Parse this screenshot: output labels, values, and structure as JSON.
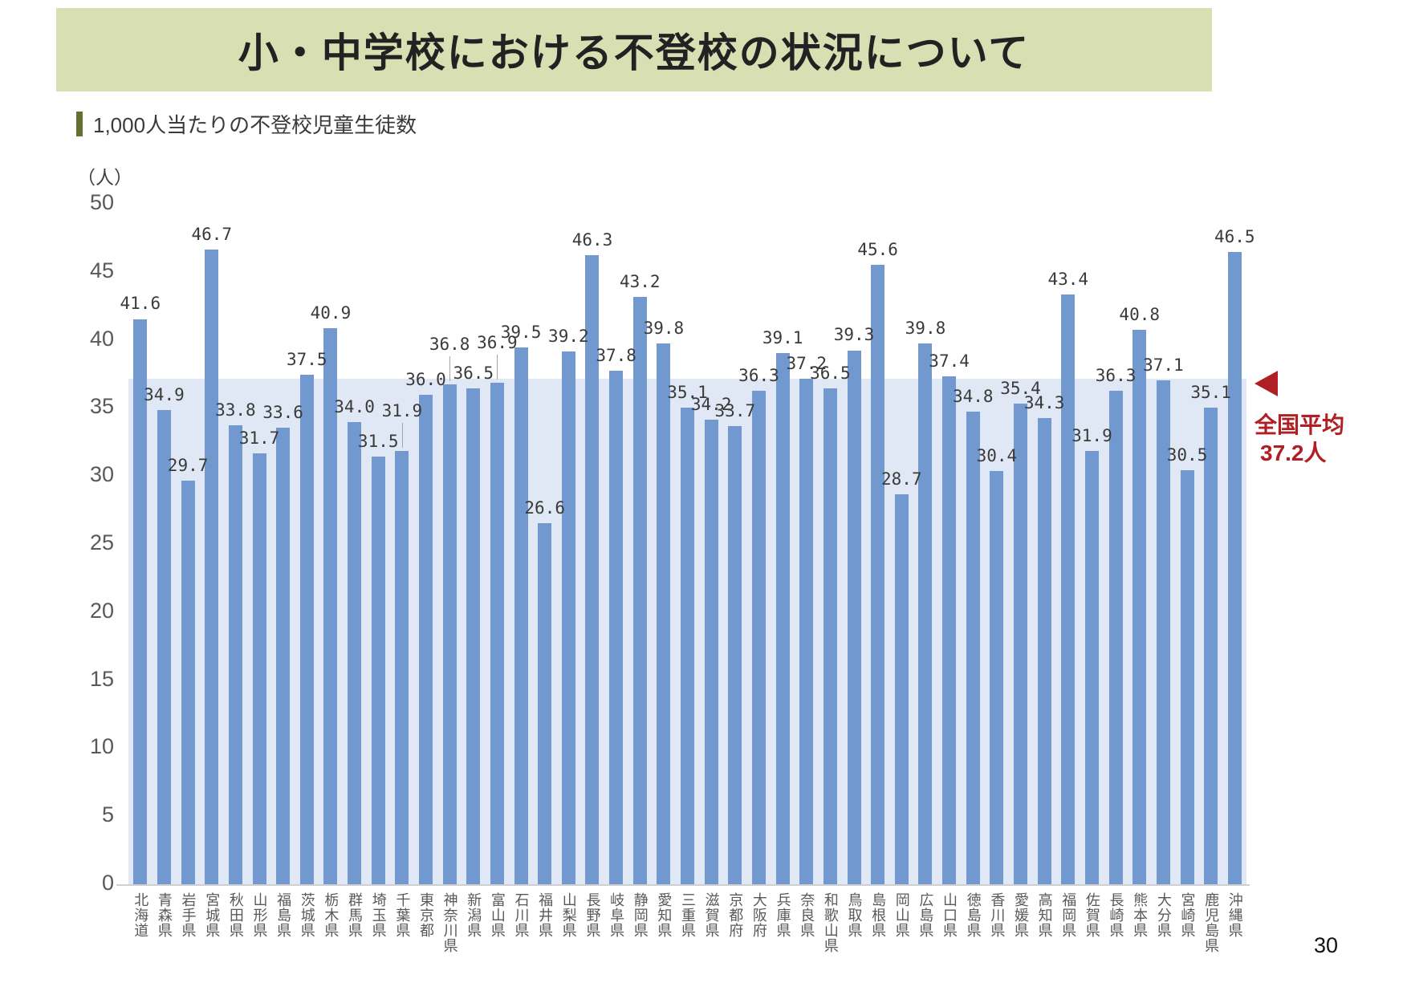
{
  "page": {
    "number": "30"
  },
  "header": {
    "title": "小・中学校における不登校の状況について"
  },
  "subtitle": {
    "text": "1,000人当たりの不登校児童生徒数"
  },
  "colors": {
    "header_bg": "#d7dfb3",
    "subtitle_marker": "#68702f",
    "bar": "#7299cf",
    "band": "#e0e8f5",
    "accent_red": "#b01f24",
    "axis_text": "#595959"
  },
  "chart_data": {
    "type": "bar",
    "title": "1,000人当たりの不登校児童生徒数",
    "unit_label": "（人）",
    "xlabel": "",
    "ylabel": "（人）",
    "ylim": [
      0,
      50
    ],
    "yticks": [
      0,
      5,
      10,
      15,
      20,
      25,
      30,
      35,
      40,
      45,
      50
    ],
    "grid": false,
    "categories": [
      "北海道",
      "青森県",
      "岩手県",
      "宮城県",
      "秋田県",
      "山形県",
      "福島県",
      "茨城県",
      "栃木県",
      "群馬県",
      "埼玉県",
      "千葉県",
      "東京都",
      "神奈川県",
      "新潟県",
      "富山県",
      "石川県",
      "福井県",
      "山梨県",
      "長野県",
      "岐阜県",
      "静岡県",
      "愛知県",
      "三重県",
      "滋賀県",
      "京都府",
      "大阪府",
      "兵庫県",
      "奈良県",
      "和歌山県",
      "鳥取県",
      "島根県",
      "岡山県",
      "広島県",
      "山口県",
      "徳島県",
      "香川県",
      "愛媛県",
      "高知県",
      "福岡県",
      "佐賀県",
      "長崎県",
      "熊本県",
      "大分県",
      "宮崎県",
      "鹿児島県",
      "沖縄県"
    ],
    "values": [
      41.6,
      34.9,
      29.7,
      46.7,
      33.8,
      31.7,
      33.6,
      37.5,
      40.9,
      34.0,
      31.5,
      31.9,
      36.0,
      36.8,
      36.5,
      36.9,
      39.5,
      26.6,
      39.2,
      46.3,
      37.8,
      43.2,
      39.8,
      35.1,
      34.2,
      33.7,
      36.3,
      39.1,
      37.2,
      36.5,
      39.3,
      45.6,
      28.7,
      39.8,
      37.4,
      34.8,
      30.4,
      35.4,
      34.3,
      43.4,
      31.9,
      36.3,
      40.8,
      37.1,
      30.5,
      35.1,
      46.5
    ],
    "labels": [
      "41.6",
      "34.9",
      "29.7",
      "46.7",
      "33.8",
      "31.7",
      "33.6",
      "37.5",
      "40.9",
      "34.0",
      "31.5",
      "31.9",
      "36.0",
      "36.8",
      "36.5",
      "36.9",
      "39.5",
      "26.6",
      "39.2",
      "46.3",
      "37.8",
      "43.2",
      "39.8",
      "35.1",
      "34.2",
      "33.7",
      "36.3",
      "39.1",
      "37.2",
      "36.5",
      "39.3",
      "45.6",
      "28.7",
      "39.8",
      "37.4",
      "34.8",
      "30.4",
      "35.4",
      "34.3",
      "43.4",
      "31.9",
      "36.3",
      "40.8",
      "37.1",
      "30.5",
      "35.1",
      "46.5"
    ],
    "average": {
      "value": 37.2,
      "label_line1": "全国平均",
      "label_line2": "37.2人",
      "marker": "left-triangle"
    },
    "raised_label_indices": [
      11,
      13,
      15
    ],
    "legend": "none"
  }
}
